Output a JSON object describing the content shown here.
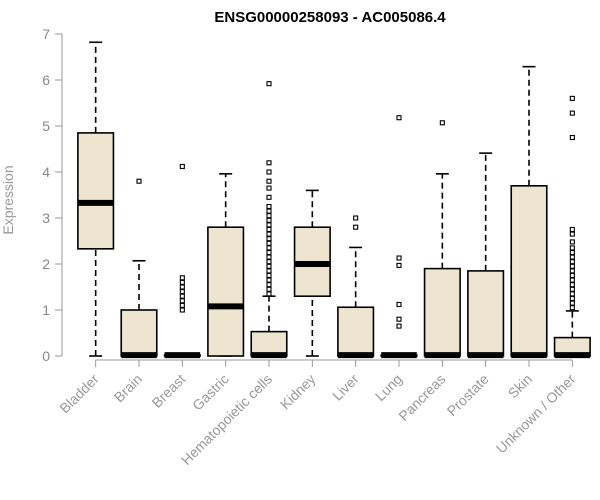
{
  "chart_data": {
    "type": "box",
    "title": "ENSG00000258093 - AC005086.4",
    "xlabel": "",
    "ylabel": "Expression",
    "ylim": [
      0,
      7
    ],
    "yticks": [
      0,
      1,
      2,
      3,
      4,
      5,
      6,
      7
    ],
    "grid": false,
    "box_fill": "#ede5cf",
    "categories": [
      "Bladder",
      "Brain",
      "Breast",
      "Gastric",
      "Hematopoietic cells",
      "Kidney",
      "Liver",
      "Lung",
      "Pancreas",
      "Prostate",
      "Skin",
      "Unknown / Other"
    ],
    "boxes": [
      {
        "name": "Bladder",
        "min": 0,
        "q1": 2.33,
        "median": 3.33,
        "q3": 4.85,
        "max": 6.82,
        "outliers": []
      },
      {
        "name": "Brain",
        "min": 0,
        "q1": 0,
        "median": 0.02,
        "q3": 1.0,
        "max": 2.07,
        "outliers": [
          3.8
        ]
      },
      {
        "name": "Breast",
        "min": 0,
        "q1": 0,
        "median": 0.02,
        "q3": 0.02,
        "max": 0.02,
        "outliers": [
          1.0,
          1.1,
          1.2,
          1.3,
          1.4,
          1.5,
          1.6,
          1.7,
          4.12
        ]
      },
      {
        "name": "Gastric",
        "min": 0,
        "q1": 0,
        "median": 1.08,
        "q3": 2.8,
        "max": 3.96,
        "outliers": []
      },
      {
        "name": "Hematopoietic cells",
        "min": 0,
        "q1": 0,
        "median": 0.02,
        "q3": 0.53,
        "max": 1.3,
        "outliers": [
          1.35,
          1.45,
          1.55,
          1.65,
          1.75,
          1.85,
          1.95,
          2.05,
          2.15,
          2.25,
          2.35,
          2.45,
          2.55,
          2.65,
          2.75,
          2.85,
          2.95,
          3.05,
          3.15,
          3.25,
          3.45,
          3.65,
          3.8,
          4.0,
          4.2,
          5.92
        ]
      },
      {
        "name": "Kidney",
        "min": 0,
        "q1": 1.3,
        "median": 2.0,
        "q3": 2.8,
        "max": 3.6,
        "outliers": []
      },
      {
        "name": "Liver",
        "min": 0,
        "q1": 0,
        "median": 0.02,
        "q3": 1.06,
        "max": 2.36,
        "outliers": [
          2.8,
          3.0
        ]
      },
      {
        "name": "Lung",
        "min": 0,
        "q1": 0,
        "median": 0.02,
        "q3": 0.02,
        "max": 0.02,
        "outliers": [
          0.65,
          0.8,
          1.12,
          1.97,
          2.13,
          5.18
        ]
      },
      {
        "name": "Pancreas",
        "min": 0,
        "q1": 0,
        "median": 0.02,
        "q3": 1.9,
        "max": 3.96,
        "outliers": [
          5.07
        ]
      },
      {
        "name": "Prostate",
        "min": 0,
        "q1": 0,
        "median": 0.02,
        "q3": 1.85,
        "max": 4.41,
        "outliers": []
      },
      {
        "name": "Skin",
        "min": 0,
        "q1": 0,
        "median": 0.02,
        "q3": 3.7,
        "max": 6.29,
        "outliers": []
      },
      {
        "name": "Unknown / Other",
        "min": 0,
        "q1": 0,
        "median": 0.02,
        "q3": 0.4,
        "max": 0.98,
        "outliers": [
          1.05,
          1.15,
          1.25,
          1.35,
          1.45,
          1.55,
          1.65,
          1.75,
          1.85,
          1.95,
          2.05,
          2.15,
          2.25,
          2.35,
          2.48,
          2.65,
          2.75,
          4.75,
          5.28,
          5.6
        ]
      }
    ]
  }
}
